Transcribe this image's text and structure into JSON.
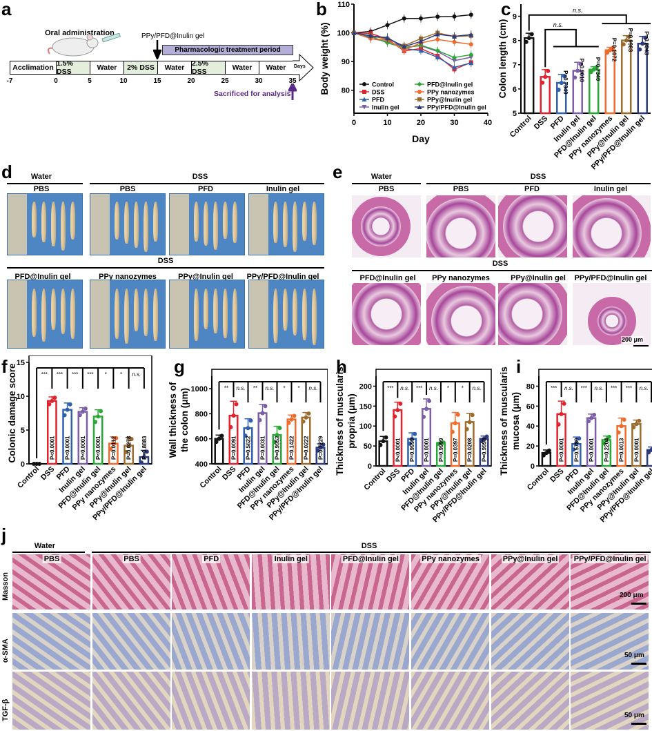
{
  "panel_letters": [
    "a",
    "b",
    "c",
    "d",
    "e",
    "f",
    "g",
    "h",
    "i",
    "j"
  ],
  "panel_a": {
    "oral_admin": "Oral administration",
    "drug_label": "PPy/PFD@Inulin gel",
    "treatment_period": "Pharmacologic treatment period",
    "segments": [
      "Acclimation",
      "1.5% DSS",
      "Water",
      "2% DSS",
      "Water",
      "2.5% DSS",
      "Water",
      "Water"
    ],
    "days_label": "Days",
    "ticks": [
      "-7",
      "0",
      "5",
      "10",
      "15",
      "20",
      "25",
      "30",
      "35"
    ],
    "sacrificed": "Sacrificed for analysis",
    "colors": {
      "dss_fill": "#e3efdc",
      "period_fill": "#b3aed6",
      "sacrifice": "#5b2a86"
    }
  },
  "panel_d": {
    "top_groups": [
      "Water",
      "DSS"
    ],
    "top_labels": [
      "PBS",
      "PBS",
      "PFD",
      "Inulin gel"
    ],
    "bottom_group": "DSS",
    "bottom_labels": [
      "PFD@Inulin gel",
      "PPy nanozymes",
      "PPy@Inulin gel",
      "PPy/PFD@Inulin gel"
    ]
  },
  "panel_e": {
    "top_groups": [
      "Water",
      "DSS"
    ],
    "top_labels": [
      "PBS",
      "PBS",
      "PFD",
      "Inulin gel"
    ],
    "bottom_group": "DSS",
    "bottom_labels": [
      "PFD@Inulin gel",
      "PPy nanozymes",
      "PPy@Inulin gel",
      "PPy/PFD@Inulin gel"
    ],
    "scale_bar": "200 μm"
  },
  "panel_j": {
    "groups": [
      "Water",
      "DSS"
    ],
    "columns": [
      "PBS",
      "PBS",
      "PFD",
      "Inulin gel",
      "PFD@Inulin gel",
      "PPy nanozymes",
      "PPy@Inulin gel",
      "PPy/PFD@Inulin gel"
    ],
    "rows": [
      "Masson",
      "α-SMA",
      "TGF-β"
    ],
    "scale_bars": [
      "200 μm",
      "50 μm",
      "50 μm"
    ]
  },
  "group_colors": [
    "#111111",
    "#e3212b",
    "#2f5fae",
    "#7b5ea7",
    "#2aa836",
    "#f06a2a",
    "#9c6b2b",
    "#2b3a7e"
  ],
  "chart_data": [
    {
      "id": "b",
      "type": "line",
      "xlabel": "Day",
      "ylabel": "Body weight (%)",
      "xlim": [
        0,
        40
      ],
      "ylim": [
        72,
        110
      ],
      "xticks": [
        "0",
        "10",
        "20",
        "30",
        "40"
      ],
      "yticks": [
        "80",
        "90",
        "100",
        "110"
      ],
      "x": [
        0,
        5,
        10,
        15,
        20,
        25,
        30,
        35
      ],
      "legend_position": "bottom-inside",
      "series": [
        {
          "name": "Control",
          "values": [
            100,
            100.5,
            102.7,
            105,
            105,
            105.6,
            105.7,
            106.3
          ]
        },
        {
          "name": "DSS",
          "values": [
            100,
            99.8,
            97.8,
            93.7,
            94.5,
            92,
            87.3,
            89.7
          ]
        },
        {
          "name": "PFD",
          "values": [
            100,
            98.5,
            98.5,
            94.5,
            93.8,
            91.5,
            88,
            89.5
          ]
        },
        {
          "name": "Inulin gel",
          "values": [
            100,
            98,
            97,
            95,
            95.5,
            93.5,
            90.3,
            91.5
          ]
        },
        {
          "name": "PFD@Inulin gel",
          "values": [
            100,
            98.8,
            96.5,
            94.8,
            95.7,
            93.8,
            91.4,
            92.4
          ]
        },
        {
          "name": "PPy nanozymes",
          "values": [
            100,
            98,
            97.5,
            94,
            96.5,
            97.7,
            96.8,
            96
          ]
        },
        {
          "name": "PPy@Inulin gel",
          "values": [
            100,
            99,
            97.8,
            95.5,
            98,
            100,
            98.7,
            99
          ]
        },
        {
          "name": "PPy/PFD@Inulin gel",
          "values": [
            100,
            99,
            98.2,
            95.2,
            97,
            99.5,
            98.8,
            99.4
          ]
        }
      ]
    },
    {
      "id": "c",
      "type": "bar",
      "ylabel": "Colon length (cm)",
      "ylim": [
        5,
        9.5
      ],
      "yticks": [
        "5",
        "6",
        "7",
        "8",
        "9"
      ],
      "categories": [
        "Control",
        "DSS",
        "PFD",
        "Inulin gel",
        "PFD@Inulin gel",
        "PPy nanozymes",
        "PPy@Inulin gel",
        "PPy/PFD@Inulin gel"
      ],
      "values": [
        8.1,
        6.5,
        6.25,
        6.75,
        6.8,
        7.6,
        8.0,
        7.87
      ],
      "errors": [
        0.2,
        0.3,
        0.35,
        0.35,
        0.12,
        0.12,
        0.2,
        0.3
      ],
      "p_values": [
        "",
        "",
        "P=0.7340",
        "P=0.9010",
        "P=0.7340",
        "P=0.1072",
        "P=0.9983",
        "P=0.8943"
      ],
      "brackets": [
        "n.s.",
        "n.s."
      ]
    },
    {
      "id": "f",
      "type": "bar",
      "ylabel": "Colonic damage score",
      "ylim": [
        0,
        15
      ],
      "yticks": [
        "0",
        "5",
        "10",
        "15"
      ],
      "categories": [
        "Control",
        "DSS",
        "PFD",
        "Inulin gel",
        "PFD@Inulin gel",
        "PPy nanozymes",
        "PPy@Inulin gel",
        "PPy/PFD@Inulin gel"
      ],
      "values": [
        0,
        9.3,
        8,
        7.7,
        7,
        3,
        2.7,
        1
      ],
      "errors": [
        0,
        0.6,
        1,
        0.6,
        1,
        1,
        1.2,
        1
      ],
      "significance": [
        "***",
        "***",
        "***",
        "***",
        "*",
        "*",
        "n.s."
      ],
      "p_values": [
        "",
        "P<0.0001",
        "P<0.0001",
        "P<0.0001",
        "P<0.0001",
        "P=0.0112",
        "P=0.0278",
        "P=0.8883"
      ]
    },
    {
      "id": "g",
      "type": "bar",
      "ylabel": "Wall thickness of the colon (μm)",
      "ylim": [
        400,
        1100
      ],
      "yticks": [
        "400",
        "600",
        "800",
        "1000"
      ],
      "categories": [
        "Control",
        "DSS",
        "PFD",
        "Inulin gel",
        "PFD@Inulin gel",
        "PPy nanozymes",
        "PPy@Inulin gel",
        "PPy/PFD@Inulin gel"
      ],
      "values": [
        600,
        785,
        685,
        805,
        630,
        755,
        770,
        530
      ],
      "errors": [
        30,
        115,
        75,
        70,
        70,
        35,
        40,
        30
      ],
      "significance": [
        "**",
        "n.s.",
        "**",
        "n.s.",
        "*",
        "*",
        "n.s."
      ],
      "p_values": [
        "",
        "P=0.0091",
        "P=0.5622",
        "P=0.0031",
        "P=0.9952",
        "P=0.1422",
        "P=0.0222",
        "P=0.7229"
      ]
    },
    {
      "id": "h",
      "type": "bar",
      "ylabel": "Thickness of muscularis propria (μm)",
      "ylim": [
        0,
        225
      ],
      "yticks": [
        "0",
        "50",
        "100",
        "150",
        "200"
      ],
      "categories": [
        "Control",
        "DSS",
        "PFD",
        "Inulin gel",
        "PFD@Inulin gel",
        "PPy nanozymes",
        "PPy@Inulin gel",
        "PPy/PFD@Inulin gel"
      ],
      "values": [
        62,
        140,
        68,
        143,
        57,
        107,
        110,
        68
      ],
      "errors": [
        12,
        20,
        15,
        25,
        2,
        27,
        22,
        7
      ],
      "significance": [
        "***",
        "n.s.",
        "***",
        "n.s.",
        "*",
        "*",
        "n.s."
      ],
      "p_values": [
        "",
        "P<0.0001",
        "P=0.9999",
        "P<0.0001",
        "P=0.9999",
        "P=0.0397",
        "P=0.0208",
        "P=0.9998"
      ]
    },
    {
      "id": "i",
      "type": "bar",
      "ylabel": "Thickness of muscularis mucosa (μm)",
      "ylim": [
        0,
        90
      ],
      "yticks": [
        "0",
        "20",
        "40",
        "60",
        "80"
      ],
      "categories": [
        "Control",
        "DSS",
        "PFD",
        "Inulin gel",
        "PFD@Inulin gel",
        "PPy nanozymes",
        "PPy@Inulin gel",
        "PPy/PFD@Inulin gel"
      ],
      "values": [
        13,
        52,
        22,
        48,
        26,
        40,
        42,
        16
      ],
      "errors": [
        3,
        13,
        7,
        4,
        4,
        8,
        4,
        3
      ],
      "significance": [
        "***",
        "n.s.",
        "***",
        "n.s.",
        "***",
        "***",
        "n.s."
      ],
      "p_values": [
        "",
        "P<0.0001",
        "P=0.5780",
        "P<0.0001",
        "P=0.2204",
        "P=0.0013",
        "P<0.0001",
        ""
      ]
    }
  ]
}
